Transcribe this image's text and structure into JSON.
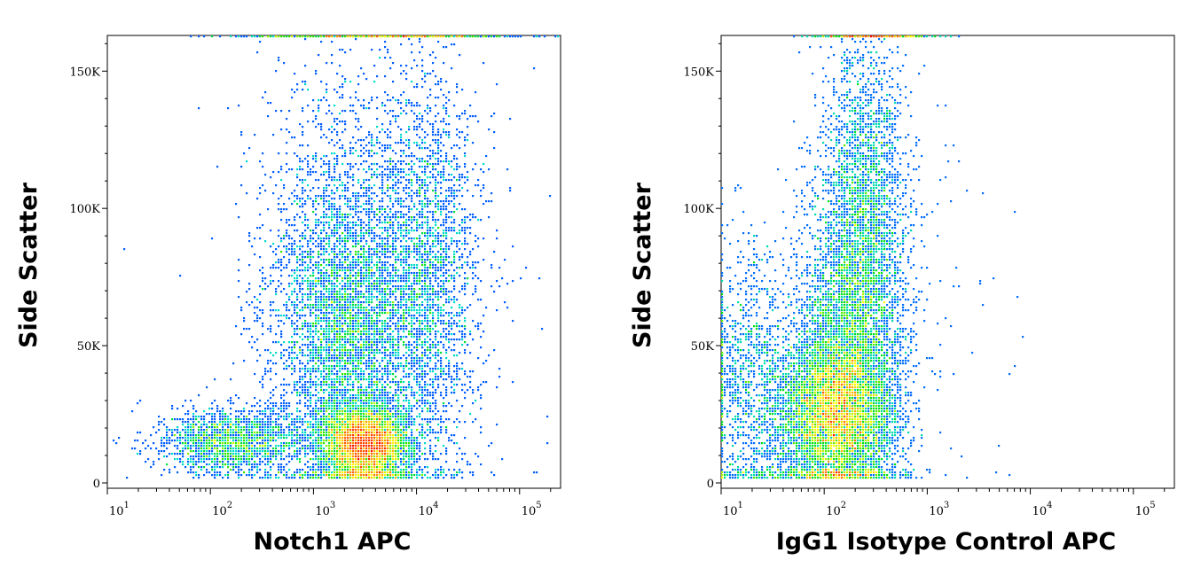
{
  "chart_data": [
    {
      "type": "scatter",
      "subtype": "density-dot-plot",
      "xlabel": "Notch1 APC",
      "ylabel": "Side Scatter",
      "xscale": "log",
      "xlim": [
        10,
        250000
      ],
      "ylim": [
        0,
        163000
      ],
      "xticks": [
        {
          "base": "10",
          "exp": "1",
          "value": 10
        },
        {
          "base": "10",
          "exp": "2",
          "value": 100
        },
        {
          "base": "10",
          "exp": "3",
          "value": 1000
        },
        {
          "base": "10",
          "exp": "4",
          "value": 10000
        },
        {
          "base": "10",
          "exp": "5",
          "value": 100000
        }
      ],
      "yticks": [
        {
          "label": "0",
          "value": 0
        },
        {
          "label": "50K",
          "value": 50000
        },
        {
          "label": "100K",
          "value": 100000
        },
        {
          "label": "150K",
          "value": 150000
        }
      ],
      "grid": false,
      "color_scale": [
        "#0000ff",
        "#00d8ff",
        "#00e000",
        "#ffff00",
        "#ff6000",
        "#ff0000"
      ],
      "populations": [
        {
          "log10_x_center": 3.5,
          "log10_x_sd": 0.22,
          "y_center": 14000,
          "y_sd": 7000,
          "count": 5200
        },
        {
          "log10_x_center": 2.2,
          "log10_x_sd": 0.35,
          "y_center": 15000,
          "y_sd": 6000,
          "count": 1800
        },
        {
          "log10_x_center": 3.3,
          "log10_x_sd": 0.35,
          "y_center": 55000,
          "y_sd": 30000,
          "count": 5000
        },
        {
          "log10_x_center": 4.1,
          "log10_x_sd": 0.25,
          "y_center": 75000,
          "y_sd": 38000,
          "count": 2600
        },
        {
          "log10_x_center": 3.4,
          "log10_x_sd": 0.5,
          "y_center": 110000,
          "y_sd": 30000,
          "count": 700
        },
        {
          "log10_x_center": 4.2,
          "log10_x_sd": 1.2,
          "y_center": 80000,
          "y_sd": 60000,
          "count": 120
        },
        {
          "log10_x_center": 3.6,
          "log10_x_sd": 0.7,
          "y_center": 163000,
          "y_sd": 0,
          "count": 500
        }
      ]
    },
    {
      "type": "scatter",
      "subtype": "density-dot-plot",
      "xlabel": "IgG1 Isotype Control APC",
      "ylabel": "Side Scatter",
      "xscale": "log",
      "xlim": [
        10,
        250000
      ],
      "ylim": [
        0,
        163000
      ],
      "xticks": [
        {
          "base": "10",
          "exp": "1",
          "value": 10
        },
        {
          "base": "10",
          "exp": "2",
          "value": 100
        },
        {
          "base": "10",
          "exp": "3",
          "value": 1000
        },
        {
          "base": "10",
          "exp": "4",
          "value": 10000
        },
        {
          "base": "10",
          "exp": "5",
          "value": 100000
        }
      ],
      "yticks": [
        {
          "label": "0",
          "value": 0
        },
        {
          "label": "50K",
          "value": 50000
        },
        {
          "label": "100K",
          "value": 100000
        },
        {
          "label": "150K",
          "value": 150000
        }
      ],
      "grid": false,
      "color_scale": [
        "#0000ff",
        "#00d8ff",
        "#00e000",
        "#ffff00",
        "#ff6000",
        "#ff0000"
      ],
      "populations": [
        {
          "log10_x_center": 2.1,
          "log10_x_sd": 0.28,
          "y_center": 25000,
          "y_sd": 15000,
          "count": 6500
        },
        {
          "log10_x_center": 2.3,
          "log10_x_sd": 0.25,
          "y_center": 60000,
          "y_sd": 30000,
          "count": 4000
        },
        {
          "log10_x_center": 2.4,
          "log10_x_sd": 0.2,
          "y_center": 115000,
          "y_sd": 28000,
          "count": 1500
        },
        {
          "log10_x_center": 1.3,
          "log10_x_sd": 0.25,
          "y_center": 35000,
          "y_sd": 25000,
          "count": 1200
        },
        {
          "log10_x_center": 2.7,
          "log10_x_sd": 0.6,
          "y_center": 60000,
          "y_sd": 45000,
          "count": 120
        },
        {
          "log10_x_center": 2.5,
          "log10_x_sd": 0.3,
          "y_center": 163000,
          "y_sd": 0,
          "count": 250
        }
      ]
    }
  ]
}
